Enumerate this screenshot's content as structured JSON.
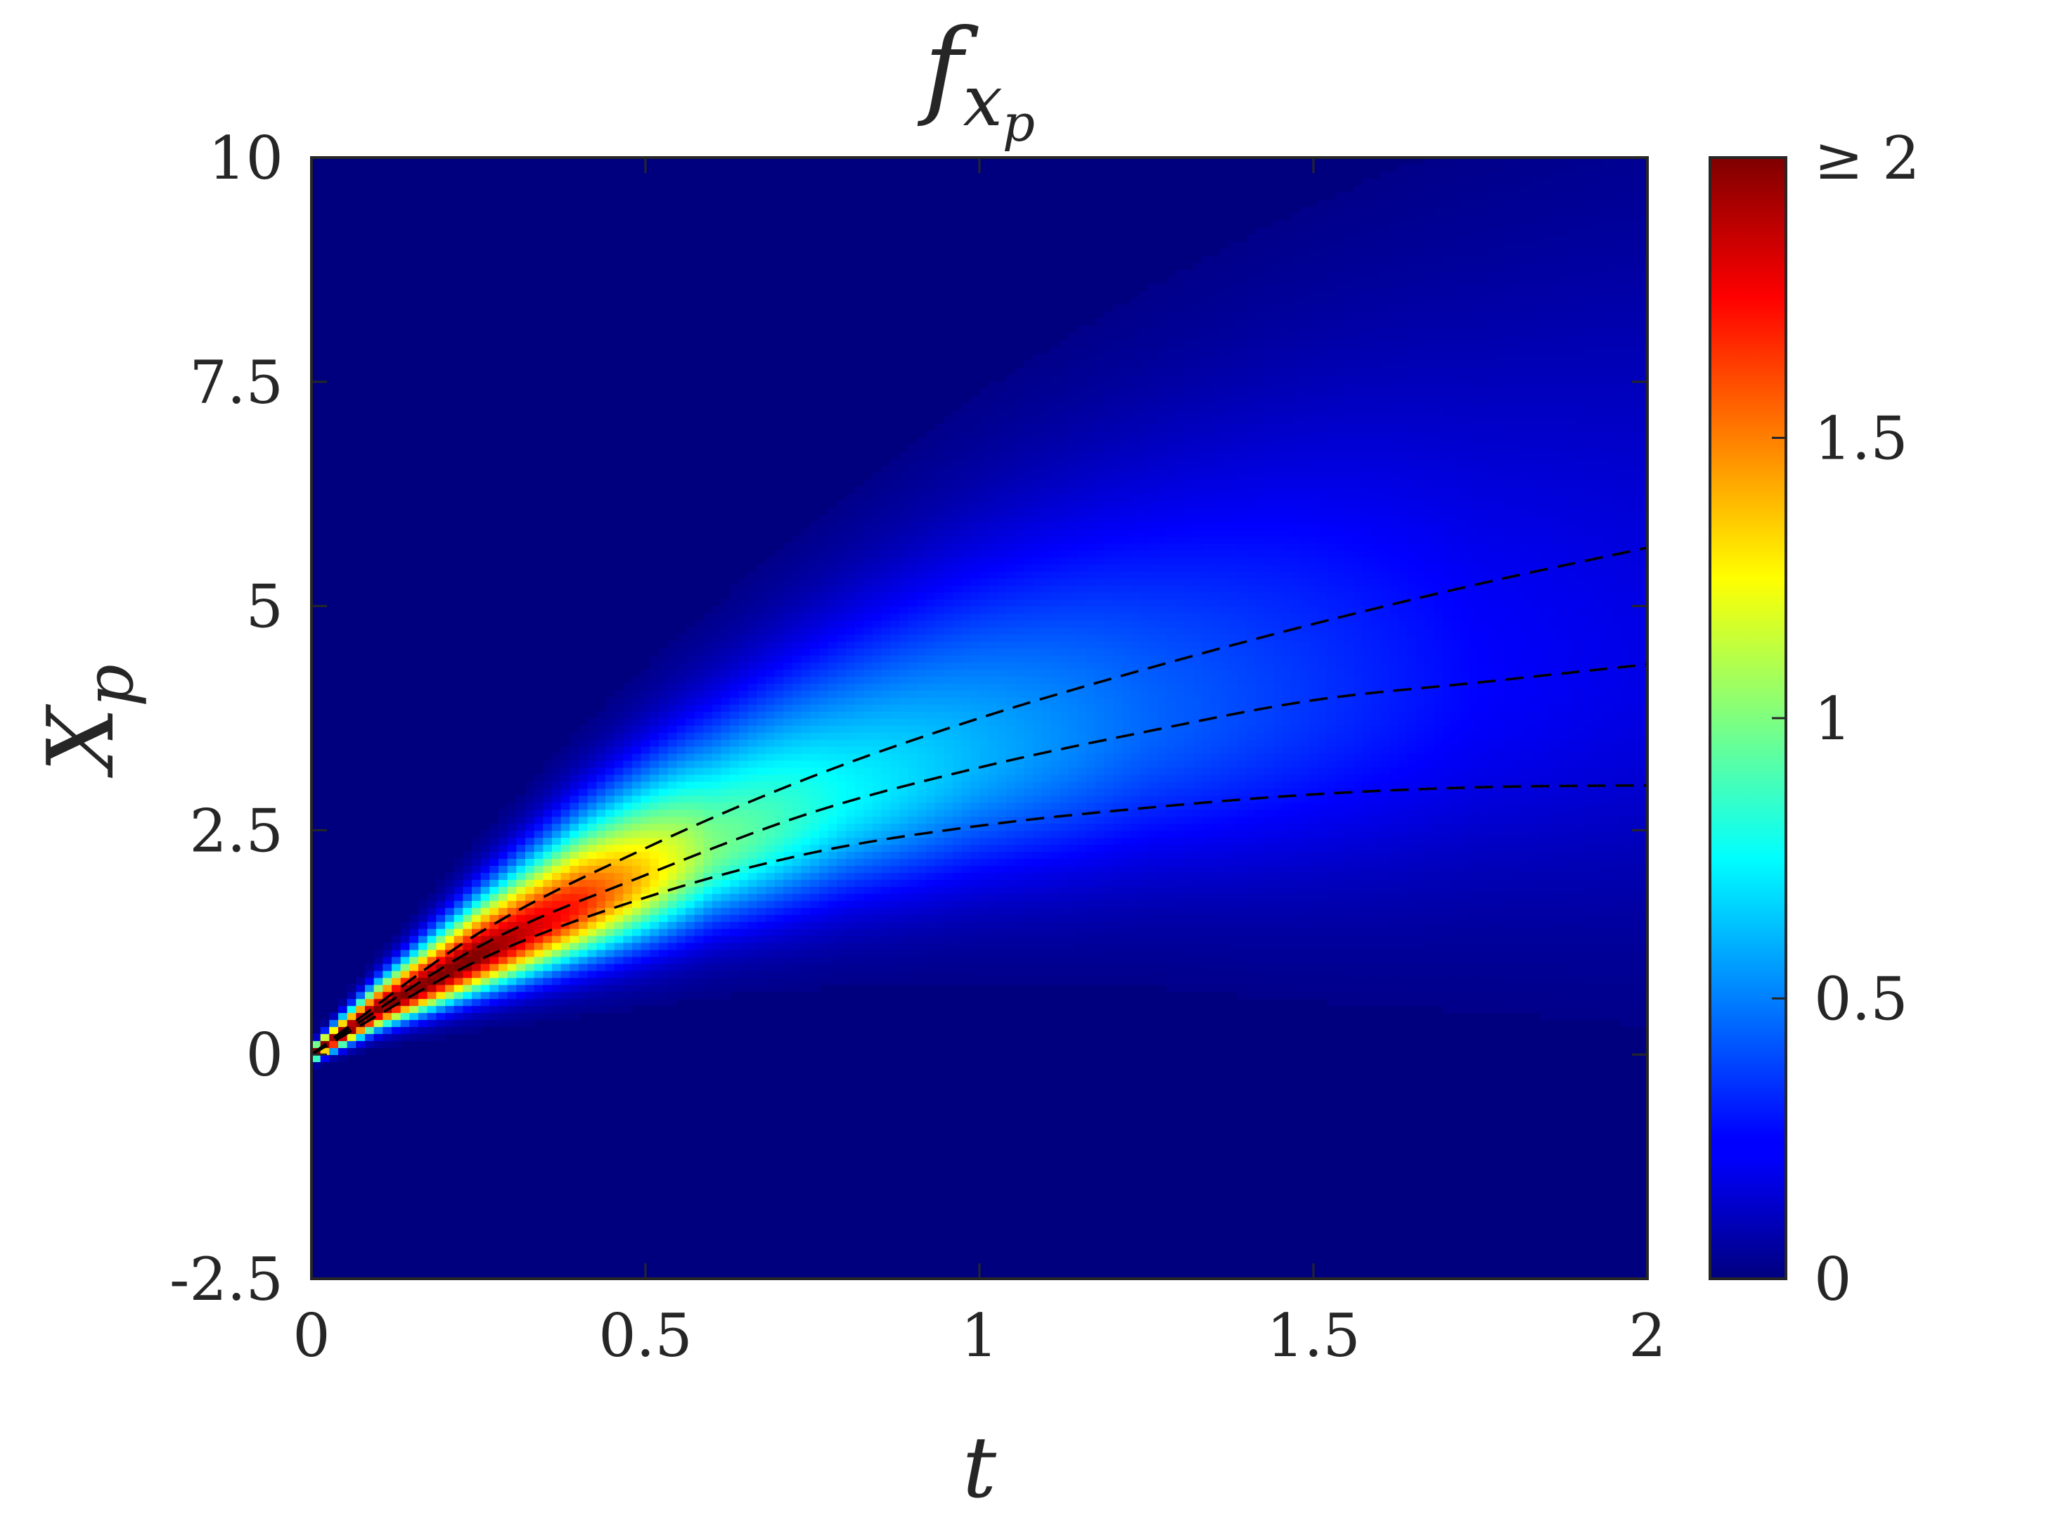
{
  "chart_data": {
    "type": "heatmap",
    "title": "f",
    "title_subscript": "x",
    "title_subsubscript": "p",
    "xlabel": "t",
    "ylabel": "X",
    "ylabel_subscript": "p",
    "xlim": [
      0,
      2
    ],
    "ylim": [
      -2.5,
      10
    ],
    "x_ticks": [
      0,
      0.5,
      1,
      1.5,
      2
    ],
    "x_tick_labels": [
      "0",
      "0.5",
      "1",
      "1.5",
      "2"
    ],
    "y_ticks": [
      -2.5,
      0,
      2.5,
      5,
      7.5,
      10
    ],
    "y_tick_labels": [
      "-2.5",
      "0",
      "2.5",
      "5",
      "7.5",
      "10"
    ],
    "colorbar": {
      "colormap": "jet",
      "range": [
        0,
        2
      ],
      "ticks": [
        0,
        0.5,
        1,
        1.5,
        2
      ],
      "tick_labels": [
        "0",
        "0.5",
        "1",
        "1.5",
        "≥ 2"
      ]
    },
    "density_ridge": {
      "t": [
        0,
        0.1,
        0.25,
        0.4,
        0.6,
        0.8,
        1.0,
        1.25,
        1.5,
        1.75,
        2.0
      ],
      "center": [
        0,
        0.5,
        1.1,
        1.65,
        2.3,
        2.85,
        3.3,
        3.7,
        3.95,
        4.15,
        4.3
      ],
      "peak_value": [
        2,
        2,
        2,
        1.7,
        1.0,
        0.75,
        0.6,
        0.45,
        0.35,
        0.25,
        0.2
      ]
    },
    "series": [
      {
        "style": "dashed",
        "color": "#000000",
        "x": [
          0,
          0.25,
          0.5,
          0.75,
          1.0,
          1.25,
          1.5,
          1.75,
          2.0
        ],
        "y": [
          0,
          1.35,
          2.3,
          3.1,
          3.75,
          4.3,
          4.8,
          5.25,
          5.65
        ]
      },
      {
        "style": "dashed",
        "color": "#000000",
        "x": [
          0,
          0.25,
          0.5,
          0.75,
          1.0,
          1.25,
          1.5,
          1.75,
          2.0
        ],
        "y": [
          0,
          1.2,
          2.0,
          2.7,
          3.2,
          3.6,
          3.95,
          4.15,
          4.35
        ]
      },
      {
        "style": "dashed",
        "color": "#000000",
        "x": [
          0,
          0.25,
          0.5,
          0.75,
          1.0,
          1.25,
          1.5,
          1.75,
          2.0
        ],
        "y": [
          0,
          1.05,
          1.75,
          2.25,
          2.55,
          2.75,
          2.9,
          2.98,
          3.0
        ]
      }
    ]
  }
}
